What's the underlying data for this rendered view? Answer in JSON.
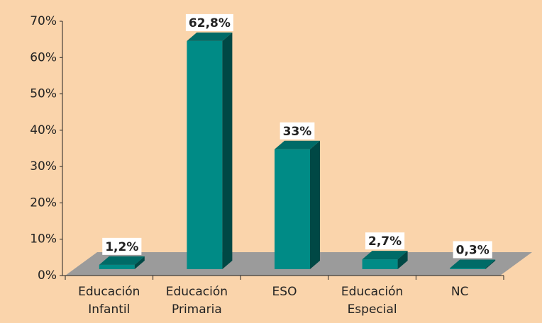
{
  "chart_data": {
    "type": "bar3d",
    "categories": [
      "Educación Infantil",
      "Educación Primaria",
      "ESO",
      "Educación Especial",
      "NC"
    ],
    "values": [
      1.2,
      62.8,
      33,
      2.7,
      0.3
    ],
    "value_labels": [
      "1,2%",
      "62,8%",
      "33%",
      "2,7%",
      "0,3%"
    ],
    "color": "#008b86",
    "ylim": [
      0,
      70
    ],
    "yticks": [
      {
        "value": 0,
        "label": "0%"
      },
      {
        "value": 10,
        "label": "10%"
      },
      {
        "value": 20,
        "label": "20%"
      },
      {
        "value": 30,
        "label": "30%"
      },
      {
        "value": 40,
        "label": "40%"
      },
      {
        "value": 50,
        "label": "50%"
      },
      {
        "value": 60,
        "label": "60%"
      },
      {
        "value": 70,
        "label": "70%"
      }
    ],
    "grid": false
  }
}
